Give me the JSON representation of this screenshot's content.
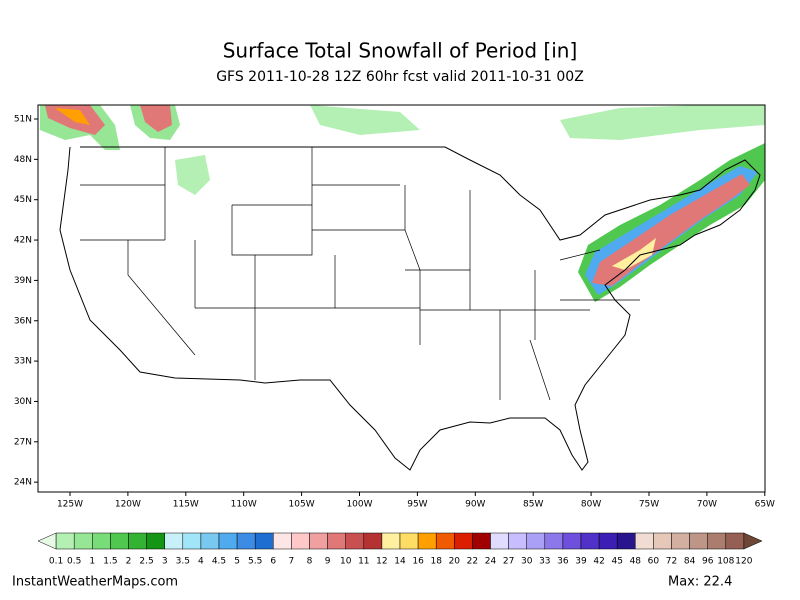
{
  "header": {
    "title": "Surface Total Snowfall of Period [in]",
    "subtitle": "GFS 2011-10-28 12Z 60hr fcst valid 2011-10-31 00Z"
  },
  "map": {
    "lat_labels": [
      "51N",
      "48N",
      "45N",
      "42N",
      "39N",
      "36N",
      "33N",
      "30N",
      "27N",
      "24N"
    ],
    "lon_labels": [
      "125W",
      "120W",
      "115W",
      "110W",
      "105W",
      "100W",
      "95W",
      "90W",
      "85W",
      "80W",
      "75W",
      "70W",
      "65W"
    ]
  },
  "colorbar": {
    "labels": [
      "0.1",
      "0.5",
      "1",
      "1.5",
      "2",
      "2.5",
      "3",
      "3.5",
      "4",
      "4.5",
      "5",
      "5.5",
      "6",
      "7",
      "8",
      "9",
      "10",
      "11",
      "12",
      "14",
      "16",
      "18",
      "20",
      "22",
      "24",
      "27",
      "30",
      "33",
      "36",
      "39",
      "42",
      "45",
      "48",
      "60",
      "72",
      "84",
      "96",
      "108",
      "120"
    ],
    "colors": [
      "#e6fae6",
      "#b4f0b4",
      "#96e696",
      "#78dc78",
      "#50c850",
      "#32b432",
      "#149614",
      "#c8f0f8",
      "#a0e6f8",
      "#78c8f0",
      "#50aaf0",
      "#3c8ce6",
      "#1e6ed2",
      "#ffe6e6",
      "#ffc8c8",
      "#f0a0a0",
      "#e07878",
      "#c85050",
      "#b43232",
      "#fff0a0",
      "#ffdc64",
      "#ffa000",
      "#f05a00",
      "#dc1e00",
      "#a00000",
      "#e0dcff",
      "#c8beff",
      "#aaa0f5",
      "#8c78eb",
      "#6e50dc",
      "#5032c8",
      "#3c1eb4",
      "#28148c",
      "#f0dcd2",
      "#e6c8b9",
      "#d2afa0",
      "#be9687",
      "#aa7d6e",
      "#965f55",
      "#6e4636"
    ]
  },
  "footer": {
    "source": "InstantWeatherMaps.com",
    "max": "Max:  22.4"
  }
}
